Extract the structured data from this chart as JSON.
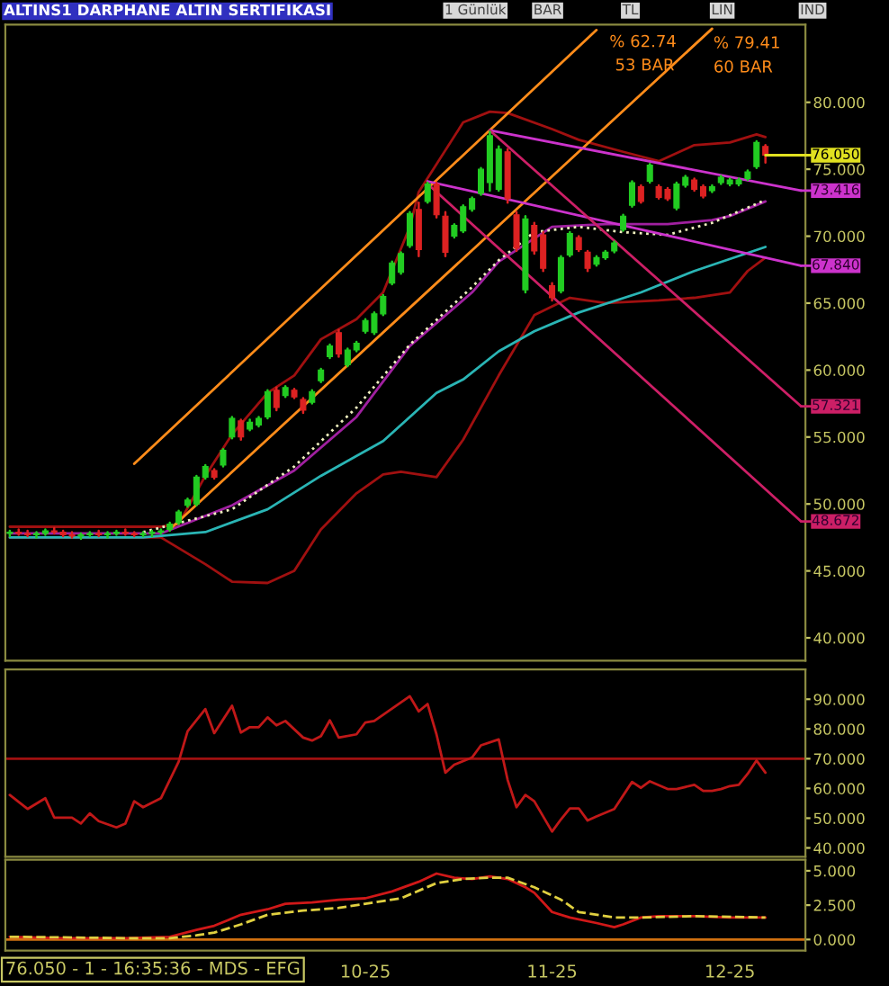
{
  "chart_data": [
    {
      "type": "candlestick",
      "title": "ALTINS1 DARPHANE ALTIN SERTIFIKASI",
      "categories": [
        null,
        null,
        null,
        null,
        null,
        null,
        null,
        null,
        null,
        null,
        null,
        null,
        null,
        null,
        null,
        null,
        null,
        null,
        null,
        null,
        null,
        null,
        null,
        null,
        null,
        null,
        null,
        null,
        null,
        null,
        null,
        null,
        null,
        null,
        null,
        null,
        null,
        null,
        null,
        null,
        null,
        null,
        null,
        null,
        null,
        null,
        null,
        null,
        null,
        null,
        null,
        null,
        null,
        null,
        null,
        null,
        null,
        null,
        null,
        null,
        null,
        null,
        null,
        null,
        null,
        null,
        null,
        null,
        null,
        null,
        null,
        null,
        null,
        null,
        null,
        null,
        null,
        null,
        null,
        null,
        null,
        null,
        null,
        null,
        null,
        null,
        null,
        null,
        null,
        null
      ],
      "ohlc": [
        [
          47.8,
          48.0,
          47.6,
          47.9
        ],
        [
          47.9,
          48.1,
          47.7,
          47.8
        ],
        [
          47.8,
          48.0,
          47.6,
          47.7
        ],
        [
          47.7,
          47.9,
          47.5,
          47.8
        ],
        [
          47.8,
          48.1,
          47.7,
          48.0
        ],
        [
          48.0,
          48.2,
          47.8,
          47.9
        ],
        [
          47.9,
          48.0,
          47.6,
          47.7
        ],
        [
          47.7,
          47.9,
          47.5,
          47.6
        ],
        [
          47.6,
          47.8,
          47.4,
          47.7
        ],
        [
          47.7,
          47.9,
          47.6,
          47.8
        ],
        [
          47.8,
          48.0,
          47.6,
          47.7
        ],
        [
          47.7,
          47.9,
          47.5,
          47.8
        ],
        [
          47.8,
          48.0,
          47.7,
          47.9
        ],
        [
          47.9,
          48.1,
          47.7,
          47.8
        ],
        [
          47.8,
          47.9,
          47.6,
          47.7
        ],
        [
          47.7,
          47.9,
          47.6,
          47.8
        ],
        [
          47.8,
          48.0,
          47.6,
          47.9
        ],
        [
          47.9,
          48.1,
          47.8,
          48.0
        ],
        [
          48.1,
          48.6,
          48.0,
          48.5
        ],
        [
          48.6,
          49.5,
          48.5,
          49.4
        ],
        [
          49.9,
          50.4,
          49.8,
          50.3
        ],
        [
          50.0,
          52.1,
          49.9,
          52.0
        ],
        [
          52.0,
          52.9,
          51.9,
          52.8
        ],
        [
          52.5,
          52.6,
          51.9,
          52.0
        ],
        [
          52.9,
          54.1,
          52.8,
          54.0
        ],
        [
          55.0,
          56.5,
          54.9,
          56.4
        ],
        [
          56.2,
          56.3,
          54.8,
          55.0
        ],
        [
          55.6,
          56.3,
          55.5,
          56.1
        ],
        [
          55.9,
          56.5,
          55.8,
          56.4
        ],
        [
          56.5,
          58.5,
          56.4,
          58.4
        ],
        [
          58.5,
          58.7,
          57.0,
          57.2
        ],
        [
          58.1,
          58.8,
          58.0,
          58.7
        ],
        [
          58.5,
          58.6,
          57.9,
          58.0
        ],
        [
          57.8,
          57.9,
          56.8,
          57.0
        ],
        [
          57.6,
          58.5,
          57.5,
          58.4
        ],
        [
          59.2,
          60.1,
          59.1,
          60.0
        ],
        [
          61.0,
          61.9,
          60.9,
          61.8
        ],
        [
          62.8,
          63.0,
          61.0,
          61.2
        ],
        [
          60.4,
          61.6,
          60.3,
          61.5
        ],
        [
          61.5,
          62.1,
          61.4,
          62.0
        ],
        [
          62.9,
          63.8,
          62.8,
          63.7
        ],
        [
          62.8,
          64.3,
          62.7,
          64.2
        ],
        [
          64.2,
          65.6,
          64.1,
          65.5
        ],
        [
          66.5,
          68.1,
          66.4,
          68.0
        ],
        [
          67.3,
          68.8,
          67.2,
          68.7
        ],
        [
          69.3,
          71.8,
          69.2,
          71.7
        ],
        [
          72.0,
          72.5,
          68.5,
          69.0
        ],
        [
          72.6,
          74.0,
          72.5,
          73.9
        ],
        [
          73.9,
          74.0,
          71.4,
          71.6
        ],
        [
          71.5,
          71.8,
          68.5,
          68.8
        ],
        [
          70.0,
          70.9,
          69.9,
          70.8
        ],
        [
          70.4,
          72.3,
          70.3,
          72.2
        ],
        [
          72.0,
          72.9,
          71.9,
          72.8
        ],
        [
          73.2,
          75.1,
          73.1,
          75.0
        ],
        [
          74.0,
          77.8,
          73.4,
          77.5
        ],
        [
          73.5,
          76.7,
          73.4,
          76.5
        ],
        [
          76.3,
          76.5,
          72.5,
          72.8
        ],
        [
          71.6,
          71.8,
          68.9,
          69.1
        ],
        [
          66.0,
          71.5,
          65.8,
          71.3
        ],
        [
          70.8,
          71.0,
          68.7,
          68.9
        ],
        [
          70.1,
          70.3,
          67.4,
          67.6
        ],
        [
          66.3,
          66.5,
          65.2,
          65.4
        ],
        [
          65.9,
          68.5,
          65.8,
          68.4
        ],
        [
          68.6,
          70.3,
          68.5,
          70.2
        ],
        [
          69.9,
          70.0,
          68.9,
          69.0
        ],
        [
          68.8,
          68.9,
          67.4,
          67.6
        ],
        [
          67.9,
          68.5,
          67.8,
          68.4
        ],
        [
          68.4,
          68.9,
          68.3,
          68.8
        ],
        [
          68.9,
          69.6,
          68.8,
          69.5
        ],
        [
          70.5,
          71.6,
          70.4,
          71.5
        ],
        [
          72.3,
          74.1,
          72.2,
          74.0
        ],
        [
          73.7,
          73.8,
          72.5,
          72.6
        ],
        [
          74.1,
          75.4,
          74.0,
          75.3
        ],
        [
          73.7,
          73.8,
          72.8,
          72.9
        ],
        [
          73.5,
          73.6,
          72.7,
          72.8
        ],
        [
          72.1,
          74.0,
          72.0,
          73.9
        ],
        [
          73.8,
          74.5,
          73.7,
          74.4
        ],
        [
          74.2,
          74.3,
          73.4,
          73.5
        ],
        [
          73.7,
          73.8,
          72.9,
          73.0
        ],
        [
          73.4,
          73.8,
          73.3,
          73.7
        ],
        [
          74.0,
          74.5,
          73.9,
          74.4
        ],
        [
          73.9,
          74.3,
          73.8,
          74.2
        ],
        [
          73.9,
          74.3,
          73.8,
          74.2
        ],
        [
          74.3,
          74.9,
          74.2,
          74.8
        ],
        [
          75.2,
          77.1,
          75.1,
          77.0
        ],
        [
          76.7,
          76.8,
          75.5,
          76.05
        ],
        null,
        null,
        null,
        null
      ],
      "series": [
        {
          "type": "line",
          "color": "#a01010",
          "line_style": "solid",
          "values": [
            48.3,
            null,
            null,
            null,
            null,
            null,
            null,
            null,
            null,
            null,
            null,
            null,
            null,
            null,
            null,
            null,
            null,
            48.3,
            null,
            48.5,
            null,
            null,
            52.1,
            null,
            null,
            55.2,
            null,
            null,
            null,
            58.3,
            null,
            null,
            59.6,
            null,
            null,
            62.3,
            null,
            null,
            null,
            63.8,
            null,
            null,
            65.8,
            null,
            null,
            70.7,
            73.3,
            null,
            null,
            null,
            null,
            78.5,
            null,
            null,
            79.3,
            null,
            79.2,
            null,
            null,
            null,
            null,
            78.0,
            null,
            null,
            77.2,
            null,
            null,
            null,
            null,
            76.3,
            null,
            null,
            null,
            75.6,
            null,
            null,
            null,
            76.8,
            null,
            null,
            null,
            77.0,
            null,
            null,
            77.6,
            77.4,
            null,
            null,
            null,
            null
          ]
        },
        {
          "type": "line",
          "color": "#a01010",
          "line_style": "solid",
          "values": [
            47.5,
            null,
            null,
            null,
            null,
            null,
            null,
            null,
            null,
            null,
            null,
            null,
            null,
            null,
            null,
            null,
            null,
            47.5,
            null,
            null,
            null,
            null,
            45.5,
            null,
            null,
            44.2,
            null,
            null,
            null,
            44.1,
            null,
            null,
            45.0,
            null,
            null,
            48.1,
            null,
            null,
            null,
            50.8,
            null,
            null,
            52.2,
            null,
            52.4,
            null,
            null,
            null,
            52.0,
            null,
            null,
            54.8,
            null,
            null,
            null,
            59.6,
            null,
            null,
            null,
            64.1,
            null,
            null,
            null,
            65.4,
            null,
            null,
            null,
            65.0,
            null,
            null,
            null,
            null,
            null,
            65.2,
            null,
            null,
            null,
            65.4,
            null,
            null,
            null,
            65.8,
            null,
            67.4,
            null,
            68.4,
            null,
            null,
            null,
            null
          ]
        },
        {
          "type": "line",
          "color": "#a020a0",
          "line_style": "solid",
          "values": [
            47.8,
            null,
            null,
            null,
            null,
            null,
            null,
            null,
            null,
            null,
            null,
            null,
            null,
            null,
            null,
            null,
            null,
            47.8,
            null,
            null,
            null,
            null,
            null,
            null,
            null,
            49.9,
            null,
            null,
            null,
            null,
            null,
            null,
            52.5,
            null,
            null,
            null,
            null,
            null,
            null,
            56.5,
            null,
            null,
            null,
            null,
            null,
            61.8,
            null,
            null,
            null,
            null,
            null,
            null,
            65.8,
            null,
            null,
            68.1,
            null,
            null,
            null,
            null,
            null,
            70.7,
            null,
            null,
            null,
            null,
            null,
            70.9,
            null,
            null,
            null,
            null,
            null,
            null,
            70.9,
            null,
            null,
            null,
            null,
            71.2,
            null,
            71.5,
            null,
            null,
            null,
            72.6,
            null,
            null,
            null,
            null
          ]
        },
        {
          "type": "line",
          "color": "#f0f0c0",
          "line_style": "dotted",
          "values": [
            null,
            null,
            null,
            null,
            null,
            null,
            null,
            null,
            null,
            null,
            null,
            null,
            null,
            null,
            null,
            47.9,
            null,
            null,
            null,
            null,
            null,
            null,
            null,
            null,
            null,
            49.6,
            null,
            null,
            null,
            null,
            null,
            null,
            52.8,
            null,
            null,
            null,
            null,
            null,
            null,
            57.2,
            null,
            null,
            null,
            null,
            null,
            61.9,
            null,
            null,
            null,
            null,
            null,
            null,
            66.2,
            null,
            null,
            68.2,
            null,
            null,
            null,
            70.3,
            null,
            null,
            null,
            null,
            70.7,
            null,
            null,
            null,
            null,
            70.3,
            null,
            null,
            null,
            null,
            70.1,
            null,
            null,
            null,
            null,
            71.0,
            null,
            null,
            null,
            null,
            null,
            72.7,
            null,
            null,
            null,
            null
          ]
        },
        {
          "type": "line",
          "color": "#2ab5b5",
          "line_style": "solid",
          "values": [
            47.5,
            null,
            null,
            null,
            null,
            null,
            null,
            null,
            null,
            null,
            null,
            null,
            null,
            null,
            null,
            47.5,
            null,
            null,
            null,
            null,
            null,
            null,
            47.9,
            null,
            null,
            null,
            null,
            null,
            null,
            49.6,
            null,
            null,
            null,
            null,
            null,
            52.1,
            null,
            null,
            null,
            null,
            null,
            null,
            54.7,
            null,
            null,
            null,
            null,
            null,
            58.3,
            null,
            null,
            59.3,
            null,
            null,
            null,
            61.4,
            null,
            null,
            null,
            62.9,
            null,
            null,
            null,
            null,
            64.3,
            null,
            null,
            null,
            null,
            null,
            null,
            65.8,
            null,
            null,
            null,
            null,
            null,
            67.4,
            null,
            null,
            null,
            null,
            null,
            null,
            null,
            69.2,
            null,
            null,
            null,
            null
          ]
        },
        {
          "type": "line",
          "color": "#ff8c1a",
          "line_style": "solid",
          "values": [
            null,
            null,
            null,
            null,
            null,
            null,
            null,
            null,
            null,
            null,
            null,
            null,
            null,
            null,
            53.0,
            null,
            null,
            null,
            null,
            null,
            null,
            null,
            null,
            null,
            null,
            null,
            null,
            null,
            null,
            null,
            null,
            null,
            null,
            null,
            null,
            null,
            null,
            null,
            null,
            null,
            null,
            null,
            null,
            null,
            null,
            null,
            null,
            null,
            null,
            null,
            null,
            null,
            null,
            null,
            null,
            null,
            null,
            null,
            null,
            null,
            null,
            null,
            null,
            null,
            null,
            null,
            85.4,
            null,
            null,
            null,
            null,
            null,
            null,
            null,
            null,
            null,
            null,
            null,
            null,
            null,
            null,
            null,
            null,
            null,
            null,
            null,
            null,
            null,
            null,
            null
          ]
        },
        {
          "type": "line",
          "color": "#ff8c1a",
          "line_style": "solid",
          "values": [
            null,
            null,
            null,
            null,
            null,
            null,
            null,
            null,
            null,
            null,
            null,
            null,
            null,
            null,
            null,
            null,
            null,
            null,
            48.1,
            null,
            null,
            null,
            null,
            null,
            null,
            null,
            null,
            null,
            null,
            null,
            null,
            null,
            null,
            null,
            null,
            null,
            null,
            null,
            null,
            null,
            null,
            null,
            null,
            null,
            null,
            null,
            null,
            null,
            null,
            null,
            null,
            null,
            null,
            null,
            null,
            null,
            null,
            null,
            null,
            null,
            null,
            null,
            null,
            null,
            null,
            null,
            null,
            null,
            null,
            null,
            null,
            null,
            null,
            null,
            null,
            null,
            null,
            null,
            null,
            85.5,
            null,
            null,
            null,
            null,
            null,
            null,
            null,
            null,
            null,
            null
          ]
        },
        {
          "type": "line",
          "color": "#cc33cc",
          "line_style": "solid",
          "values": [
            null,
            null,
            null,
            null,
            null,
            null,
            null,
            null,
            null,
            null,
            null,
            null,
            null,
            null,
            null,
            null,
            null,
            null,
            null,
            null,
            null,
            null,
            null,
            null,
            null,
            null,
            null,
            null,
            null,
            null,
            null,
            null,
            null,
            null,
            null,
            null,
            null,
            null,
            null,
            null,
            null,
            null,
            null,
            null,
            null,
            null,
            null,
            null,
            null,
            null,
            null,
            null,
            null,
            null,
            77.9,
            null,
            null,
            null,
            null,
            null,
            null,
            null,
            null,
            null,
            null,
            null,
            null,
            null,
            null,
            null,
            null,
            null,
            null,
            null,
            null,
            null,
            null,
            null,
            null,
            null,
            null,
            null,
            null,
            null,
            null,
            null,
            null,
            null,
            null,
            73.4
          ]
        },
        {
          "type": "line",
          "color": "#cc33cc",
          "line_style": "solid",
          "values": [
            null,
            null,
            null,
            null,
            null,
            null,
            null,
            null,
            null,
            null,
            null,
            null,
            null,
            null,
            null,
            null,
            null,
            null,
            null,
            null,
            null,
            null,
            null,
            null,
            null,
            null,
            null,
            null,
            null,
            null,
            null,
            null,
            null,
            null,
            null,
            null,
            null,
            null,
            null,
            null,
            null,
            null,
            null,
            null,
            null,
            null,
            null,
            74.1,
            null,
            null,
            null,
            null,
            null,
            null,
            null,
            null,
            null,
            null,
            null,
            null,
            null,
            null,
            null,
            null,
            null,
            null,
            null,
            null,
            null,
            null,
            null,
            null,
            null,
            null,
            null,
            null,
            null,
            null,
            null,
            null,
            null,
            null,
            null,
            null,
            null,
            null,
            null,
            null,
            null,
            67.8
          ]
        },
        {
          "type": "line",
          "color": "#cc1f66",
          "line_style": "solid",
          "values": [
            null,
            null,
            null,
            null,
            null,
            null,
            null,
            null,
            null,
            null,
            null,
            null,
            null,
            null,
            null,
            null,
            null,
            null,
            null,
            null,
            null,
            null,
            null,
            null,
            null,
            null,
            null,
            null,
            null,
            null,
            null,
            null,
            null,
            null,
            null,
            null,
            null,
            null,
            null,
            null,
            null,
            null,
            null,
            null,
            null,
            null,
            null,
            null,
            null,
            null,
            null,
            null,
            null,
            null,
            77.9,
            null,
            null,
            null,
            null,
            null,
            null,
            null,
            null,
            null,
            null,
            null,
            null,
            null,
            null,
            null,
            null,
            null,
            null,
            null,
            null,
            null,
            null,
            null,
            null,
            null,
            null,
            null,
            null,
            null,
            null,
            null,
            null,
            null,
            null,
            57.3
          ]
        },
        {
          "type": "line",
          "color": "#cc1f66",
          "line_style": "solid",
          "values": [
            null,
            null,
            null,
            null,
            null,
            null,
            null,
            null,
            null,
            null,
            null,
            null,
            null,
            null,
            null,
            null,
            null,
            null,
            null,
            null,
            null,
            null,
            null,
            null,
            null,
            null,
            null,
            null,
            null,
            null,
            null,
            null,
            null,
            null,
            null,
            null,
            null,
            null,
            null,
            null,
            null,
            null,
            null,
            null,
            null,
            null,
            null,
            73.9,
            null,
            null,
            null,
            null,
            null,
            null,
            null,
            null,
            null,
            null,
            null,
            null,
            null,
            null,
            null,
            null,
            null,
            null,
            null,
            null,
            null,
            null,
            null,
            null,
            null,
            null,
            null,
            null,
            null,
            null,
            null,
            null,
            null,
            null,
            null,
            null,
            null,
            null,
            null,
            null,
            null,
            48.7
          ]
        }
      ],
      "ylim": [
        38.3,
        85.8
      ],
      "yticks": [
        {
          "value": 40,
          "label": "40.000"
        },
        {
          "value": 45,
          "label": "45.000"
        },
        {
          "value": 50,
          "label": "50.000"
        },
        {
          "value": 55,
          "label": "55.000"
        },
        {
          "value": 60,
          "label": "60.000"
        },
        {
          "value": 65,
          "label": "65.000"
        },
        {
          "value": 70,
          "label": "70.000"
        },
        {
          "value": 75,
          "label": "75.000"
        },
        {
          "value": 80,
          "label": "80.000"
        }
      ],
      "tick_labels": "y",
      "annotations": [
        "1 Günlük",
        "BAR",
        "TL",
        "LIN",
        "IND",
        "% 62.74",
        "53 BAR",
        "% 79.41",
        "60 BAR",
        "76.050",
        "73.416",
        "67.840",
        "57.321",
        "48.672"
      ]
    },
    {
      "type": "line",
      "categories": [
        null,
        null,
        null,
        null,
        null,
        null,
        null,
        null,
        null,
        null,
        null,
        null,
        null,
        null,
        null,
        null,
        null,
        null,
        null,
        null,
        null,
        null,
        null,
        null,
        null,
        null,
        null,
        null,
        null,
        null,
        null,
        null,
        null,
        null,
        null,
        null,
        null,
        null,
        null,
        null,
        null,
        null,
        null,
        null,
        null,
        null,
        null,
        null,
        null,
        null,
        null,
        null,
        null,
        null,
        null,
        null,
        null,
        null,
        null,
        null,
        null,
        null,
        null,
        null,
        null,
        null,
        null,
        null,
        null,
        null,
        null,
        null,
        null,
        null,
        null,
        null,
        null,
        null,
        null,
        null,
        null,
        null,
        null,
        null,
        null,
        null,
        null,
        null,
        null,
        null
      ],
      "series": [
        {
          "color": "#c01818",
          "values": [
            57.8,
            null,
            53.1,
            null,
            56.7,
            50.2,
            null,
            50.2,
            48.2,
            51.6,
            49.0,
            null,
            46.9,
            48.2,
            55.7,
            53.7,
            null,
            56.7,
            null,
            69.0,
            79.2,
            null,
            86.7,
            78.6,
            null,
            87.8,
            78.8,
            80.6,
            80.6,
            83.9,
            81.2,
            82.7,
            null,
            77.1,
            76.1,
            77.6,
            82.9,
            77.1,
            null,
            78.2,
            82.2,
            82.7,
            null,
            null,
            null,
            91.0,
            85.9,
            88.4,
            78.2,
            65.3,
            68.0,
            null,
            70.4,
            74.5,
            null,
            76.5,
            62.9,
            53.7,
            57.8,
            55.7,
            null,
            45.5,
            49.6,
            53.3,
            53.3,
            49.2,
            50.6,
            null,
            53.1,
            null,
            62.2,
            60.2,
            62.4,
            null,
            59.8,
            59.8,
            null,
            61.2,
            59.2,
            59.2,
            59.8,
            60.8,
            61.2,
            64.9,
            69.4,
            65.3,
            null,
            null,
            null,
            null
          ]
        }
      ],
      "ref_lines": [
        {
          "axis": "y",
          "value": 70,
          "color": "#a01010"
        }
      ],
      "ylim": [
        37,
        100
      ],
      "yticks": [
        {
          "value": 40,
          "label": "40.000"
        },
        {
          "value": 50,
          "label": "50.000"
        },
        {
          "value": 60,
          "label": "60.000"
        },
        {
          "value": 70,
          "label": "70.000"
        },
        {
          "value": 80,
          "label": "80.000"
        },
        {
          "value": 90,
          "label": "90.000"
        }
      ],
      "tick_labels": "y"
    },
    {
      "type": "line",
      "categories": [
        null,
        null,
        null,
        null,
        null,
        null,
        null,
        null,
        null,
        null,
        null,
        null,
        null,
        null,
        null,
        null,
        null,
        null,
        null,
        null,
        null,
        null,
        null,
        null,
        null,
        null,
        null,
        null,
        null,
        null,
        null,
        null,
        null,
        null,
        null,
        null,
        null,
        null,
        null,
        null,
        "10-25",
        null,
        null,
        null,
        null,
        null,
        null,
        null,
        null,
        null,
        null,
        null,
        null,
        null,
        null,
        null,
        null,
        null,
        null,
        null,
        null,
        "11-25",
        null,
        null,
        null,
        null,
        null,
        null,
        null,
        null,
        null,
        null,
        null,
        null,
        null,
        null,
        null,
        null,
        null,
        null,
        null,
        "12-25",
        null,
        null,
        null,
        null,
        null,
        null,
        null,
        null
      ],
      "series": [
        {
          "color": "#d01818",
          "line_style": "solid",
          "values": [
            0.2,
            null,
            null,
            null,
            null,
            null,
            0.1,
            null,
            null,
            null,
            null,
            null,
            null,
            0.1,
            null,
            null,
            null,
            null,
            0.2,
            null,
            null,
            0.7,
            null,
            1.0,
            null,
            null,
            1.8,
            null,
            null,
            2.2,
            null,
            2.6,
            null,
            null,
            2.7,
            null,
            null,
            2.9,
            null,
            null,
            3.0,
            null,
            null,
            3.5,
            null,
            null,
            4.2,
            null,
            4.8,
            null,
            4.5,
            null,
            4.4,
            null,
            4.6,
            null,
            4.4,
            null,
            3.8,
            3.4,
            null,
            2.0,
            null,
            1.6,
            null,
            null,
            1.2,
            null,
            0.9,
            1.1,
            null,
            1.6,
            null,
            1.7,
            null,
            null,
            null,
            1.7,
            null,
            null,
            null,
            1.6,
            null,
            null,
            null,
            1.6,
            null,
            null,
            null,
            null
          ]
        },
        {
          "color": "#e0d040",
          "line_style": "dashed",
          "values": [
            0.2,
            null,
            null,
            null,
            null,
            null,
            null,
            null,
            null,
            null,
            null,
            null,
            null,
            0.1,
            null,
            null,
            null,
            null,
            0.1,
            null,
            null,
            0.3,
            null,
            0.5,
            null,
            null,
            1.1,
            null,
            null,
            1.8,
            null,
            null,
            null,
            2.1,
            null,
            null,
            null,
            2.3,
            null,
            null,
            2.6,
            null,
            null,
            null,
            3.0,
            null,
            null,
            null,
            4.1,
            null,
            null,
            4.4,
            null,
            null,
            4.5,
            null,
            4.5,
            null,
            null,
            3.8,
            null,
            null,
            2.9,
            null,
            2.0,
            null,
            null,
            null,
            1.6,
            null,
            null,
            1.6,
            null,
            null,
            null,
            null,
            null,
            1.7,
            null,
            null,
            null,
            null,
            null,
            null,
            null,
            1.6,
            null,
            null,
            null,
            null
          ]
        }
      ],
      "ref_lines": [
        {
          "axis": "y",
          "value": 0,
          "color": "#d07010"
        }
      ],
      "ylim": [
        -0.8,
        5.8
      ],
      "yticks": [
        {
          "value": 0,
          "label": "0.000"
        },
        {
          "value": 2.5,
          "label": "2.500"
        },
        {
          "value": 5,
          "label": "5.000"
        }
      ],
      "annotations": [
        "76.050 - 1 - 16:35:36 - MDS - EFG"
      ]
    }
  ]
}
